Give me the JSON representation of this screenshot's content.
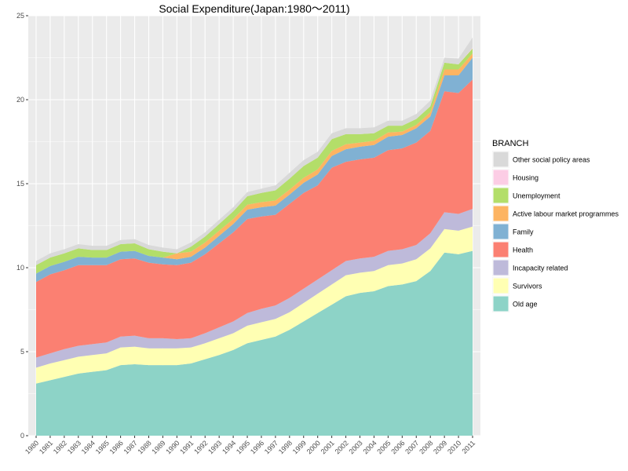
{
  "chart_data": {
    "type": "area",
    "stacked": true,
    "title": "Social Expenditure(Japan:1980～2011)",
    "xlabel": "",
    "ylabel": "",
    "ylim": [
      0,
      25
    ],
    "y_ticks": [
      0,
      5,
      10,
      15,
      20,
      25
    ],
    "x": [
      1980,
      1981,
      1982,
      1983,
      1984,
      1985,
      1986,
      1987,
      1988,
      1989,
      1990,
      1991,
      1992,
      1993,
      1994,
      1995,
      1996,
      1997,
      1998,
      1999,
      2000,
      2001,
      2002,
      2003,
      2004,
      2005,
      2006,
      2007,
      2008,
      2009,
      2010,
      2011
    ],
    "x_tick_labels": [
      "1980",
      "1981",
      "1982",
      "1983",
      "1984",
      "1985",
      "1986",
      "1987",
      "1988",
      "1989",
      "1990",
      "1991",
      "1992",
      "1993",
      "1994",
      "1995",
      "1996",
      "1997",
      "1998",
      "1999",
      "2000",
      "2001",
      "2002",
      "2003",
      "2004",
      "2005",
      "2006",
      "2007",
      "2008",
      "2009",
      "2010",
      "2011"
    ],
    "grid": true,
    "legend": {
      "title": "BRANCH",
      "position": "right",
      "order": [
        "Other social policy areas",
        "Housing",
        "Unemployment",
        "Active labour market programmes",
        "Family",
        "Health",
        "Incapacity related",
        "Survivors",
        "Old age"
      ]
    },
    "series": [
      {
        "name": "Old age",
        "color": "#8DD3C7",
        "values": [
          3.1,
          3.3,
          3.5,
          3.7,
          3.8,
          3.9,
          4.2,
          4.25,
          4.2,
          4.2,
          4.2,
          4.3,
          4.55,
          4.8,
          5.1,
          5.5,
          5.7,
          5.9,
          6.3,
          6.8,
          7.3,
          7.8,
          8.3,
          8.5,
          8.6,
          8.9,
          9.0,
          9.2,
          9.8,
          10.9,
          10.8,
          11.0
        ]
      },
      {
        "name": "Survivors",
        "color": "#FFFFB3",
        "values": [
          0.95,
          1.0,
          1.0,
          1.0,
          1.0,
          1.0,
          1.05,
          1.05,
          1.0,
          1.0,
          1.0,
          0.95,
          0.95,
          1.0,
          1.0,
          1.05,
          1.05,
          1.05,
          1.05,
          1.1,
          1.15,
          1.2,
          1.25,
          1.2,
          1.2,
          1.25,
          1.25,
          1.3,
          1.35,
          1.4,
          1.4,
          1.45
        ]
      },
      {
        "name": "Incapacity related",
        "color": "#BEBADA",
        "values": [
          0.6,
          0.6,
          0.65,
          0.65,
          0.65,
          0.65,
          0.65,
          0.65,
          0.6,
          0.6,
          0.55,
          0.55,
          0.6,
          0.65,
          0.7,
          0.75,
          0.8,
          0.8,
          0.85,
          0.85,
          0.85,
          0.85,
          0.85,
          0.85,
          0.85,
          0.85,
          0.85,
          0.85,
          0.9,
          1.0,
          1.0,
          1.05
        ]
      },
      {
        "name": "Health",
        "color": "#FB8072",
        "values": [
          4.5,
          4.7,
          4.7,
          4.8,
          4.7,
          4.6,
          4.6,
          4.6,
          4.5,
          4.4,
          4.4,
          4.5,
          4.7,
          5.0,
          5.3,
          5.6,
          5.5,
          5.4,
          5.6,
          5.7,
          5.6,
          6.1,
          5.9,
          5.9,
          5.9,
          6.0,
          6.0,
          6.1,
          6.1,
          7.2,
          7.2,
          7.7
        ]
      },
      {
        "name": "Family",
        "color": "#80B1D3",
        "values": [
          0.5,
          0.5,
          0.5,
          0.5,
          0.45,
          0.45,
          0.45,
          0.45,
          0.4,
          0.4,
          0.35,
          0.35,
          0.4,
          0.45,
          0.5,
          0.55,
          0.55,
          0.55,
          0.55,
          0.6,
          0.65,
          0.7,
          0.75,
          0.75,
          0.75,
          0.8,
          0.8,
          0.85,
          0.85,
          0.95,
          1.05,
          1.3
        ]
      },
      {
        "name": "Active labour market programmes",
        "color": "#FDB462",
        "values": [
          0.0,
          0.0,
          0.0,
          0.0,
          0.0,
          0.0,
          0.0,
          0.0,
          0.0,
          0.0,
          0.35,
          0.3,
          0.3,
          0.3,
          0.3,
          0.3,
          0.3,
          0.3,
          0.3,
          0.3,
          0.3,
          0.3,
          0.3,
          0.25,
          0.25,
          0.25,
          0.2,
          0.2,
          0.25,
          0.35,
          0.35,
          0.25
        ]
      },
      {
        "name": "Unemployment",
        "color": "#B3DE69",
        "values": [
          0.5,
          0.5,
          0.5,
          0.5,
          0.45,
          0.45,
          0.45,
          0.45,
          0.4,
          0.35,
          0.0,
          0.3,
          0.35,
          0.4,
          0.45,
          0.5,
          0.55,
          0.6,
          0.65,
          0.7,
          0.7,
          0.7,
          0.6,
          0.5,
          0.45,
          0.4,
          0.35,
          0.35,
          0.35,
          0.4,
          0.3,
          0.3
        ]
      },
      {
        "name": "Housing",
        "color": "#FCCDE5",
        "values": [
          0.0,
          0.0,
          0.0,
          0.0,
          0.0,
          0.0,
          0.0,
          0.0,
          0.0,
          0.0,
          0.0,
          0.0,
          0.0,
          0.0,
          0.0,
          0.0,
          0.0,
          0.0,
          0.0,
          0.0,
          0.0,
          0.0,
          0.0,
          0.0,
          0.0,
          0.0,
          0.0,
          0.0,
          0.0,
          0.0,
          0.0,
          0.05
        ]
      },
      {
        "name": "Other social policy areas",
        "color": "#D9D9D9",
        "values": [
          0.25,
          0.25,
          0.25,
          0.25,
          0.25,
          0.25,
          0.25,
          0.25,
          0.25,
          0.25,
          0.25,
          0.25,
          0.25,
          0.25,
          0.25,
          0.25,
          0.25,
          0.3,
          0.35,
          0.35,
          0.35,
          0.35,
          0.35,
          0.35,
          0.35,
          0.3,
          0.3,
          0.3,
          0.35,
          0.3,
          0.35,
          0.6
        ]
      }
    ]
  }
}
